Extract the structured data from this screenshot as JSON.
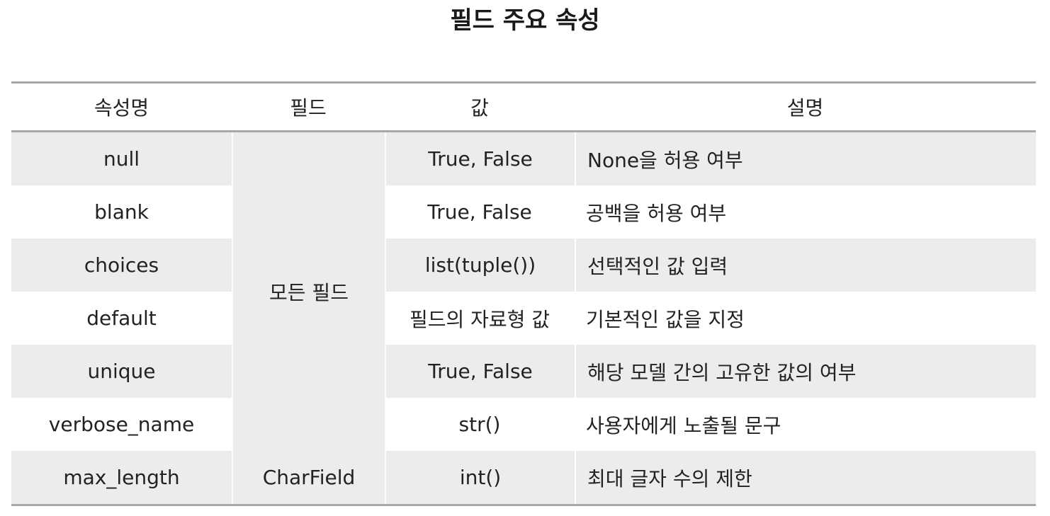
{
  "title": "필드 주요 속성",
  "table": {
    "headers": [
      "속성명",
      "필드",
      "값",
      "설명"
    ],
    "rows": [
      {
        "name": "null",
        "value": "True, False",
        "description": "None을 허용 여부"
      },
      {
        "name": "blank",
        "value": "True, False",
        "description": "공백을 허용 여부"
      },
      {
        "name": "choices",
        "value": "list(tuple())",
        "description": "선택적인 값 입력"
      },
      {
        "name": "default",
        "value": "필드의 자료형 값",
        "description": "기본적인 값을 지정"
      },
      {
        "name": "unique",
        "value": "True, False",
        "description": "해당 모델 간의 고유한 값의 여부"
      },
      {
        "name": "verbose_name",
        "value": "str()",
        "description": "사용자에게 노출될 문구"
      },
      {
        "name": "max_length",
        "value": "int()",
        "description": "최대 글자 수의 제한"
      }
    ],
    "field_groups": [
      "모든 필드",
      "CharField"
    ]
  },
  "colors": {
    "row_shade": "#ececec",
    "rule": "#a8a8a8",
    "text": "#222222"
  }
}
